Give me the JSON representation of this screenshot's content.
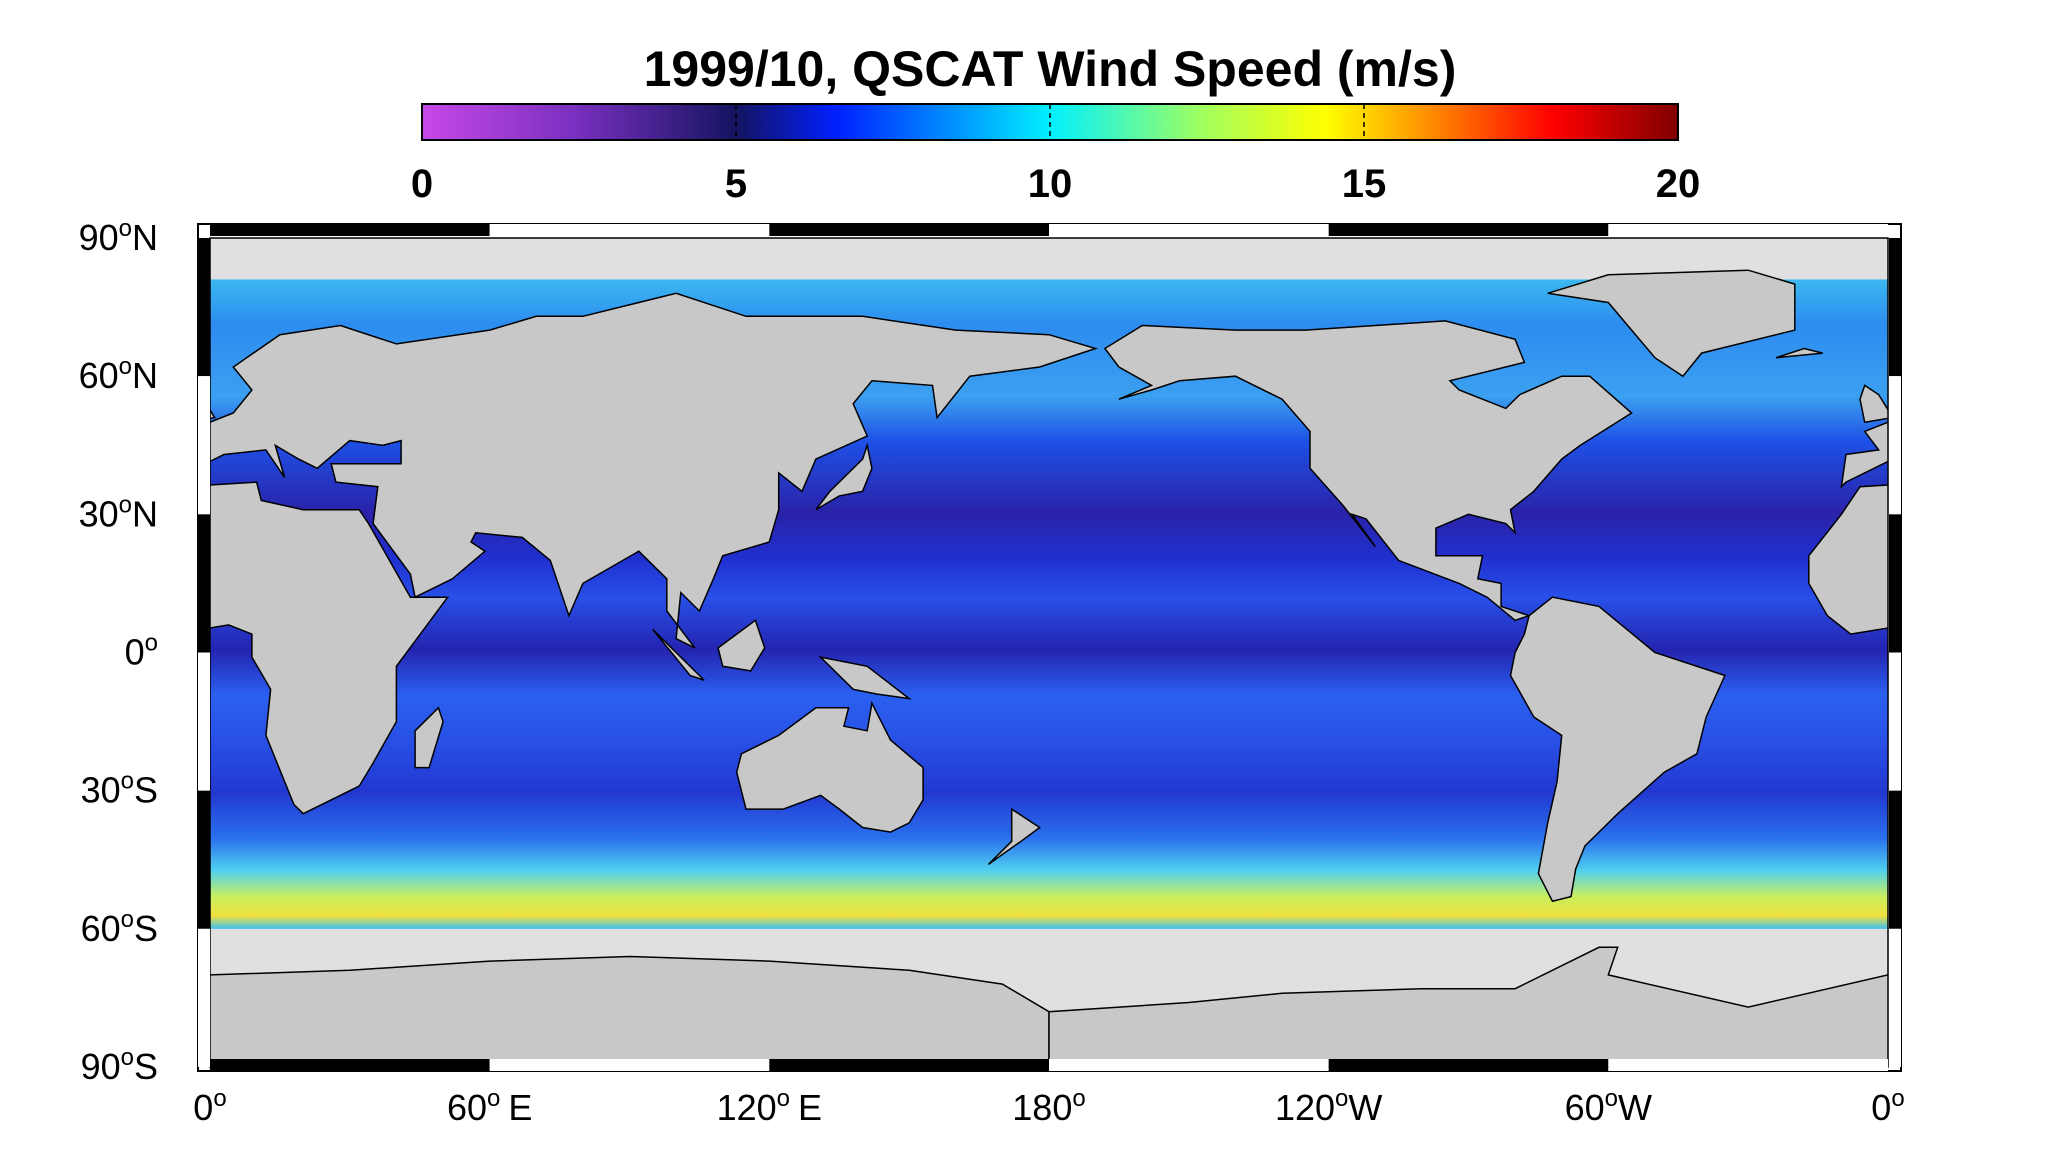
{
  "title": "1999/10,  QSCAT Wind Speed (m/s)",
  "colorbar": {
    "lim": [
      0,
      20
    ],
    "ticks": [
      0,
      5,
      10,
      15,
      20
    ]
  },
  "lat_labels": [
    {
      "num": "90",
      "sup": "o",
      "dir": "N"
    },
    {
      "num": "60",
      "sup": "o",
      "dir": "N"
    },
    {
      "num": "30",
      "sup": "o",
      "dir": "N"
    },
    {
      "num": "0",
      "sup": "o"
    },
    {
      "num": "30",
      "sup": "o",
      "dir": "S"
    },
    {
      "num": "60",
      "sup": "o",
      "dir": "S"
    },
    {
      "num": "90",
      "sup": "o",
      "dir": "S"
    }
  ],
  "lon_labels": [
    {
      "num": "0",
      "sup": "o"
    },
    {
      "num": "60",
      "sup": "o",
      "dir": "E"
    },
    {
      "num": "120",
      "sup": "o",
      "dir": "E"
    },
    {
      "num": "180",
      "sup": "o"
    },
    {
      "num": "120",
      "sup": "o",
      "dir": "W"
    },
    {
      "num": "60",
      "sup": "o",
      "dir": "W"
    },
    {
      "num": "0",
      "sup": "o"
    }
  ]
}
